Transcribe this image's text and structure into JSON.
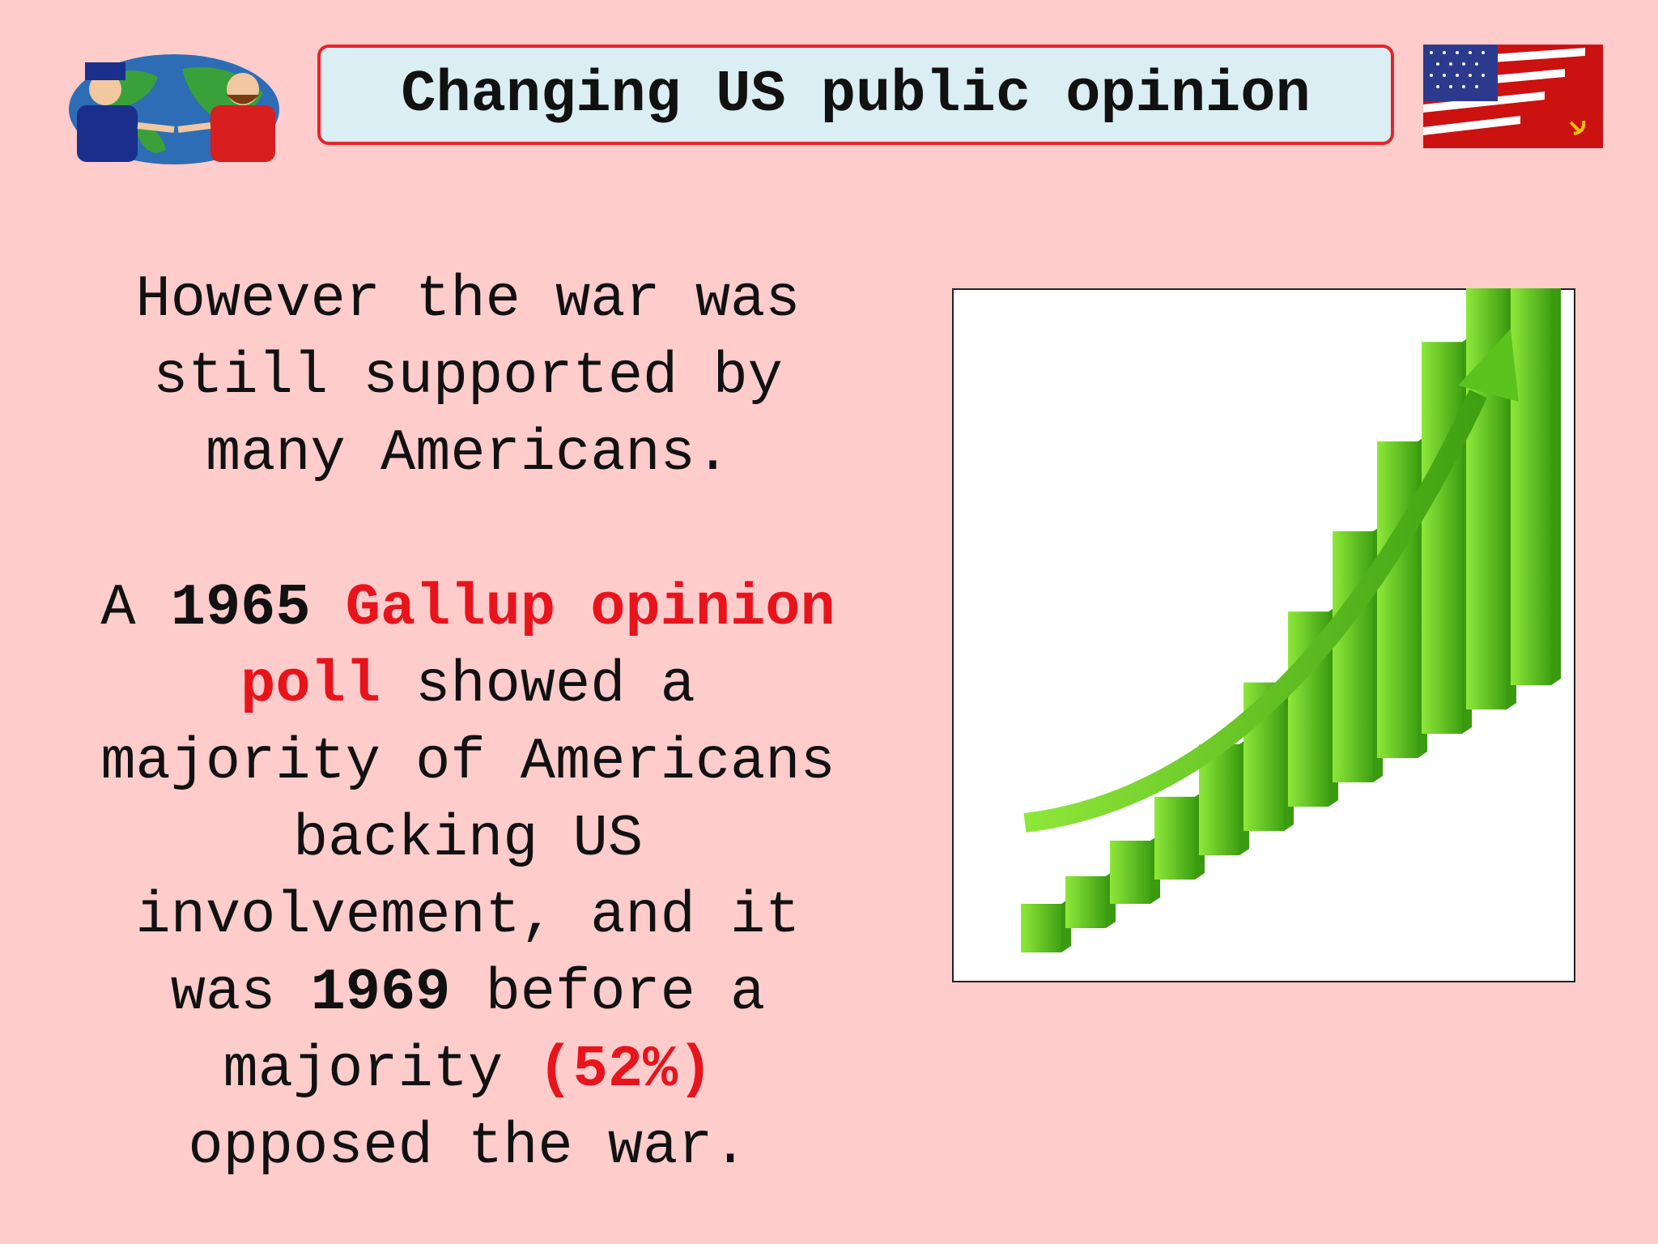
{
  "header": {
    "title": "Changing US public opinion"
  },
  "paragraphs": [
    {
      "runs": [
        "However the war was still supported by many Americans."
      ]
    },
    {
      "runs": [
        "A ",
        "1965",
        " ",
        "Gallup opinion poll",
        " showed a majority of Americans backing US involvement, and it was ",
        "1969",
        " before a majority ",
        "(52%)",
        " opposed the war."
      ]
    }
  ]
}
